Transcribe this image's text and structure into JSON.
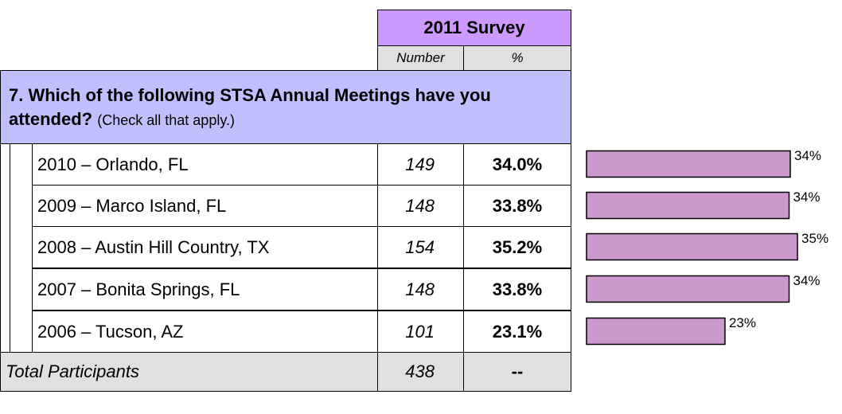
{
  "header": {
    "title": "2011 Survey",
    "columns": [
      "Number",
      "%"
    ]
  },
  "question": {
    "text": "7. Which of the following STSA Annual Meetings have you attended?",
    "note": "(Check all that apply.)"
  },
  "table": {
    "rows": [
      [
        "2010 – Orlando, FL",
        "149",
        "34.0%"
      ],
      [
        "2009 – Marco Island, FL",
        "148",
        "33.8%"
      ],
      [
        "2008 – Austin Hill Country, TX",
        "154",
        "35.2%"
      ],
      [
        "2007 – Bonita Springs, FL",
        "148",
        "33.8%"
      ],
      [
        "2006 – Tucson, AZ",
        "101",
        "23.1%"
      ]
    ],
    "total": [
      "Total Participants",
      "438",
      "--"
    ]
  },
  "chart_data": {
    "type": "bar",
    "orientation": "horizontal",
    "color": "#cc99cc",
    "values": [
      34.0,
      33.8,
      35.2,
      33.8,
      23.1
    ],
    "value_labels": [
      "34%",
      "34%",
      "35%",
      "34%",
      "23%"
    ]
  }
}
